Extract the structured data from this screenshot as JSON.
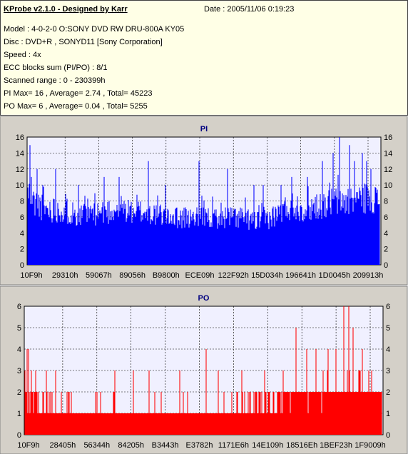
{
  "header": {
    "title": "KProbe v2.1.0 - Designed by Karr",
    "date": "Date : 2005/11/06 0:19:23",
    "lines": [
      "Model : 4-0-2-0 O:SONY    DVD RW DRU-800A  KY05",
      "Disc : DVD+R , SONYD11 [Sony Corporation]",
      "Speed : 4x",
      "ECC blocks sum (PI/PO) : 8/1",
      "Scanned range : 0 - 230399h",
      "PI Max= 16 , Average= 2.74 , Total= 45223",
      "PO Max= 6 , Average= 0.04 , Total= 5255"
    ]
  },
  "colors": {
    "pi": "#0000ff",
    "po": "#ff0000",
    "background": "#d4d0c8",
    "plot": "#f0f0ff",
    "info_bg": "#ffffe6",
    "title": "#000080"
  },
  "chart_data": [
    {
      "type": "bar",
      "title": "PI",
      "ylim": [
        0,
        16
      ],
      "yticks": [
        0,
        2,
        4,
        6,
        8,
        10,
        12,
        14,
        16
      ],
      "xlim": [
        0,
        230399
      ],
      "xticks": [
        "10F9h",
        "29310h",
        "59067h",
        "89056h",
        "B9800h",
        "ECE09h",
        "122F92h",
        "15D034h",
        "196641h",
        "1D0045h",
        "209913h"
      ],
      "grid": true,
      "profile": [
        [
          0,
          9
        ],
        [
          3000,
          8
        ],
        [
          8000,
          7.5
        ],
        [
          12000,
          7
        ],
        [
          20000,
          7
        ],
        [
          30000,
          6.5
        ],
        [
          45000,
          6.5
        ],
        [
          60000,
          7
        ],
        [
          80000,
          6.5
        ],
        [
          100000,
          6
        ],
        [
          120000,
          6
        ],
        [
          140000,
          6
        ],
        [
          150000,
          5.5
        ],
        [
          160000,
          6
        ],
        [
          168000,
          7
        ],
        [
          175000,
          7.5
        ],
        [
          182000,
          7
        ],
        [
          190000,
          7.5
        ],
        [
          200000,
          8
        ],
        [
          210000,
          8
        ],
        [
          218000,
          8.5
        ],
        [
          225000,
          8.5
        ],
        [
          230399,
          8
        ]
      ],
      "spikes": [
        [
          1500,
          15
        ],
        [
          2200,
          11
        ],
        [
          6000,
          12
        ],
        [
          10000,
          10
        ],
        [
          18000,
          12
        ],
        [
          33000,
          10
        ],
        [
          50000,
          11
        ],
        [
          60000,
          11
        ],
        [
          79000,
          13
        ],
        [
          90000,
          10
        ],
        [
          112000,
          13
        ],
        [
          131000,
          12
        ],
        [
          148000,
          10
        ],
        [
          154000,
          10
        ],
        [
          166000,
          10
        ],
        [
          173000,
          11
        ],
        [
          183000,
          11
        ],
        [
          193000,
          13
        ],
        [
          200000,
          14
        ],
        [
          204000,
          16
        ],
        [
          211000,
          15
        ],
        [
          214000,
          13
        ],
        [
          219000,
          14
        ],
        [
          222000,
          13
        ],
        [
          225000,
          12
        ]
      ]
    },
    {
      "type": "bar",
      "title": "PO",
      "ylim": [
        0,
        6
      ],
      "yticks": [
        0,
        1,
        2,
        3,
        4,
        5,
        6
      ],
      "xlim": [
        0,
        230399
      ],
      "xticks": [
        "10F9h",
        "28405h",
        "56344h",
        "84205h",
        "B3443h",
        "E3782h",
        "1171E6h",
        "14E109h",
        "18516Eh",
        "1BEF23h",
        "1F9009h"
      ],
      "grid": true,
      "profile": [
        [
          0,
          1.9
        ],
        [
          5000,
          1.6
        ],
        [
          20000,
          1.3
        ],
        [
          50000,
          1.25
        ],
        [
          80000,
          1.2
        ],
        [
          110000,
          1.2
        ],
        [
          140000,
          1.3
        ],
        [
          160000,
          1.5
        ],
        [
          175000,
          1.8
        ],
        [
          190000,
          1.9
        ],
        [
          205000,
          2
        ],
        [
          230399,
          2
        ]
      ],
      "spikes": [
        [
          1200,
          4
        ],
        [
          2500,
          4
        ],
        [
          4000,
          3
        ],
        [
          7000,
          3
        ],
        [
          14000,
          3
        ],
        [
          20000,
          3
        ],
        [
          30000,
          2
        ],
        [
          58000,
          3
        ],
        [
          70000,
          3
        ],
        [
          80000,
          3
        ],
        [
          100000,
          3
        ],
        [
          117000,
          4
        ],
        [
          125000,
          3
        ],
        [
          140000,
          3
        ],
        [
          155000,
          3
        ],
        [
          167000,
          3
        ],
        [
          175000,
          5
        ],
        [
          182000,
          4
        ],
        [
          188000,
          4
        ],
        [
          196000,
          4
        ],
        [
          201000,
          4
        ],
        [
          206000,
          6
        ],
        [
          209000,
          6
        ],
        [
          212000,
          5
        ],
        [
          218000,
          4
        ],
        [
          224000,
          3
        ]
      ]
    }
  ]
}
